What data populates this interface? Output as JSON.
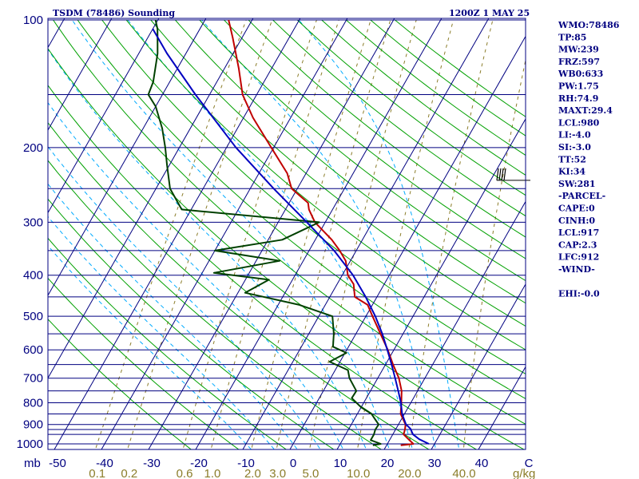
{
  "header": {
    "title": "TSDM (78486) Sounding",
    "datetime": "1200Z  1 MAY 25"
  },
  "indices": [
    "WMO:78486",
    "TP:85",
    "MW:239",
    "FRZ:597",
    "WB0:633",
    "PW:1.75",
    "RH:74.9",
    "MAXT:29.4",
    "LCL:980",
    "LI:-4.0",
    "SI:-3.0",
    "TT:52",
    "KI:34",
    "SW:281",
    "-PARCEL-",
    "CAPE:0",
    "CINH:0",
    "LCL:917",
    "CAP:2.3",
    "LFC:912",
    "-WIND-",
    "",
    "EHI:-0.0"
  ],
  "colors": {
    "frame": "#000080",
    "isobar": "#000080",
    "isotherm": "#000080",
    "dry_adiabat": "#00a000",
    "moist_adiabat": "#00aaff",
    "mixing_ratio": "#8b7d2a",
    "temperature": "#c00000",
    "dewpoint": "#004000",
    "parcel": "#0000c0",
    "wind": "#000000"
  },
  "chart_data": {
    "type": "skew-t log-p sounding",
    "y_axis": {
      "label": "mb",
      "scale": "log",
      "range": [
        1050,
        100
      ],
      "ticks": [
        100,
        200,
        300,
        400,
        500,
        600,
        700,
        800,
        900,
        1000
      ]
    },
    "x_axis": {
      "label": "C",
      "range": [
        -50,
        50
      ],
      "ticks": [
        -50,
        -40,
        -30,
        -20,
        -10,
        0,
        10,
        20,
        30,
        40
      ]
    },
    "x_tick_labels": [
      "-50",
      "-40",
      "-30",
      "-20",
      "-10",
      "0",
      "10",
      "20",
      "30",
      "40",
      "C"
    ],
    "mixing_ratio_axis": {
      "label": "g/kg",
      "ticks": [
        0.1,
        0.2,
        0.6,
        1.0,
        2.0,
        3.0,
        5.0,
        10.0,
        20.0,
        40.0
      ],
      "tick_labels": [
        "0.1",
        "0.2",
        "0.6",
        "1.0",
        "2.0",
        "3.0",
        "5.0",
        "10.0",
        "20.0",
        "40.0"
      ]
    },
    "isobars": [
      100,
      150,
      200,
      250,
      300,
      350,
      400,
      450,
      500,
      550,
      600,
      650,
      700,
      750,
      800,
      850,
      900,
      925,
      950,
      1000,
      1050
    ],
    "isotherms": [
      -150,
      -140,
      -130,
      -120,
      -110,
      -100,
      -90,
      -80,
      -70,
      -60,
      -50,
      -40,
      -30,
      -20,
      -10,
      0,
      10,
      20,
      30,
      40,
      50
    ],
    "dry_adiabats_K": [
      250,
      260,
      270,
      280,
      290,
      300,
      310,
      320,
      330,
      340,
      350,
      360,
      370,
      380,
      390,
      400,
      410,
      420,
      430,
      440,
      450,
      460,
      470
    ],
    "moist_adiabats_C": [
      -10,
      -5,
      0,
      5,
      10,
      15,
      20,
      25,
      30,
      35
    ],
    "mixing_ratio_lines_gkg": [
      0.1,
      0.2,
      0.6,
      1.0,
      2.0,
      3.0,
      5.0,
      10.0,
      20.0,
      40.0
    ],
    "series": [
      {
        "key": "temperature",
        "points": [
          [
            1008,
            23.0
          ],
          [
            1000,
            25.5
          ],
          [
            950,
            22.3
          ],
          [
            925,
            22.0
          ],
          [
            900,
            21.5
          ],
          [
            850,
            19.2
          ],
          [
            800,
            18.0
          ],
          [
            750,
            16.6
          ],
          [
            700,
            14.5
          ],
          [
            650,
            11.6
          ],
          [
            600,
            8.7
          ],
          [
            550,
            5.2
          ],
          [
            500,
            1.4
          ],
          [
            470,
            -1.0
          ],
          [
            450,
            -4.7
          ],
          [
            420,
            -6.5
          ],
          [
            400,
            -8.8
          ],
          [
            370,
            -11.0
          ],
          [
            350,
            -13.5
          ],
          [
            330,
            -16.5
          ],
          [
            300,
            -22.2
          ],
          [
            280,
            -25.0
          ],
          [
            270,
            -26.0
          ],
          [
            250,
            -31.2
          ],
          [
            230,
            -34.0
          ],
          [
            200,
            -40.5
          ],
          [
            170,
            -48.0
          ],
          [
            150,
            -53.0
          ],
          [
            130,
            -57.0
          ],
          [
            110,
            -62.0
          ],
          [
            100,
            -65.0
          ]
        ]
      },
      {
        "key": "dewpoint",
        "points": [
          [
            1008,
            17.1
          ],
          [
            1000,
            18.6
          ],
          [
            980,
            16.0
          ],
          [
            950,
            16.0
          ],
          [
            925,
            15.7
          ],
          [
            900,
            15.8
          ],
          [
            880,
            14.7
          ],
          [
            850,
            13.0
          ],
          [
            820,
            10.0
          ],
          [
            780,
            6.9
          ],
          [
            750,
            7.0
          ],
          [
            700,
            4.0
          ],
          [
            670,
            2.7
          ],
          [
            640,
            -2.2
          ],
          [
            610,
            0.3
          ],
          [
            590,
            -3.3
          ],
          [
            550,
            -4.7
          ],
          [
            500,
            -7.1
          ],
          [
            470,
            -15.5
          ],
          [
            440,
            -28.5
          ],
          [
            410,
            -25.0
          ],
          [
            395,
            -37.5
          ],
          [
            370,
            -25.0
          ],
          [
            350,
            -40.0
          ],
          [
            330,
            -27.0
          ],
          [
            300,
            -21.3
          ],
          [
            280,
            -52.0
          ],
          [
            250,
            -57.0
          ],
          [
            220,
            -60.5
          ],
          [
            200,
            -63.0
          ],
          [
            180,
            -66.0
          ],
          [
            160,
            -70.0
          ],
          [
            150,
            -73.0
          ],
          [
            140,
            -73.5
          ],
          [
            120,
            -76.0
          ],
          [
            105,
            -79.0
          ],
          [
            100,
            -80.5
          ]
        ]
      },
      {
        "key": "parcel",
        "points": [
          [
            1000,
            28.8
          ],
          [
            975,
            26.2
          ],
          [
            950,
            24.3
          ],
          [
            920,
            23.0
          ],
          [
            900,
            21.6
          ],
          [
            850,
            19.5
          ],
          [
            800,
            17.9
          ],
          [
            750,
            15.9
          ],
          [
            700,
            13.7
          ],
          [
            650,
            11.3
          ],
          [
            600,
            8.6
          ],
          [
            550,
            5.6
          ],
          [
            500,
            2.0
          ],
          [
            450,
            -2.4
          ],
          [
            400,
            -7.7
          ],
          [
            350,
            -14.7
          ],
          [
            300,
            -23.9
          ],
          [
            250,
            -35.0
          ],
          [
            200,
            -48.0
          ],
          [
            150,
            -63.0
          ],
          [
            120,
            -74.0
          ],
          [
            105,
            -80.0
          ]
        ]
      }
    ],
    "wind_barbs": [
      {
        "pressure": 239,
        "speed_kt": 20
      }
    ]
  }
}
